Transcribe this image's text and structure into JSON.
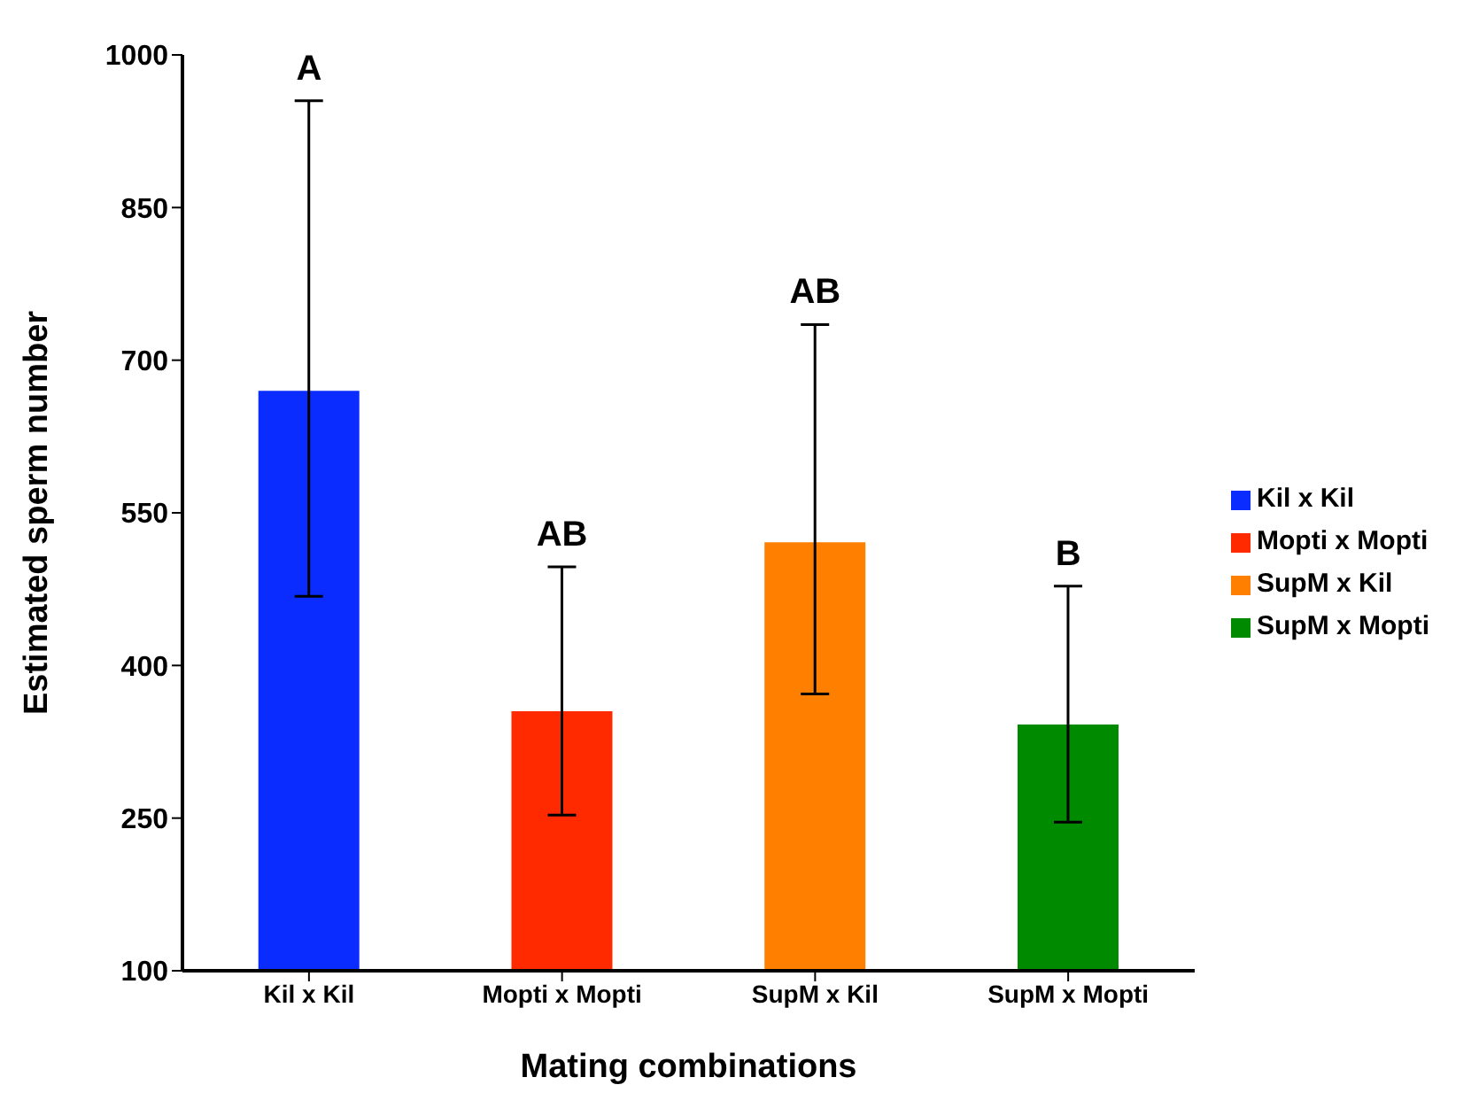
{
  "chart_data": {
    "type": "bar",
    "xlabel": "Mating combinations",
    "ylabel": "Estimated sperm number",
    "categories": [
      "Kil x Kil",
      "Mopti x Mopti",
      "SupM x Kil",
      "SupM x Mopti"
    ],
    "series": [
      {
        "name": "Kil x Kil",
        "color": "#0a2cff",
        "values": [
          670,
          null,
          null,
          null
        ],
        "errors": [
          [
            468,
            955
          ],
          null,
          null,
          null
        ]
      },
      {
        "name": "Mopti x Mopti",
        "color": "#ff2a00",
        "values": [
          null,
          355,
          null,
          null
        ],
        "errors": [
          null,
          [
            253,
            497
          ],
          null,
          null
        ]
      },
      {
        "name": "SupM x Kil",
        "color": "#ff7f00",
        "values": [
          null,
          null,
          521,
          null
        ],
        "errors": [
          null,
          null,
          [
            372,
            735
          ],
          null
        ]
      },
      {
        "name": "SupM x Mopti",
        "color": "#008a00",
        "values": [
          null,
          null,
          null,
          342
        ],
        "errors": [
          null,
          null,
          null,
          [
            246,
            478
          ]
        ]
      }
    ],
    "ylim": [
      100,
      1000
    ],
    "yticks": [
      100,
      250,
      400,
      550,
      700,
      850,
      1000
    ],
    "grid": false,
    "legend": "right",
    "annotations": [
      {
        "text": "A",
        "x": "Kil x Kil",
        "y": 955
      },
      {
        "text": "AB",
        "x": "Mopti x Mopti",
        "y": 497
      },
      {
        "text": "AB",
        "x": "SupM x Kil",
        "y": 735
      },
      {
        "text": "B",
        "x": "SupM x Mopti",
        "y": 478
      }
    ]
  }
}
